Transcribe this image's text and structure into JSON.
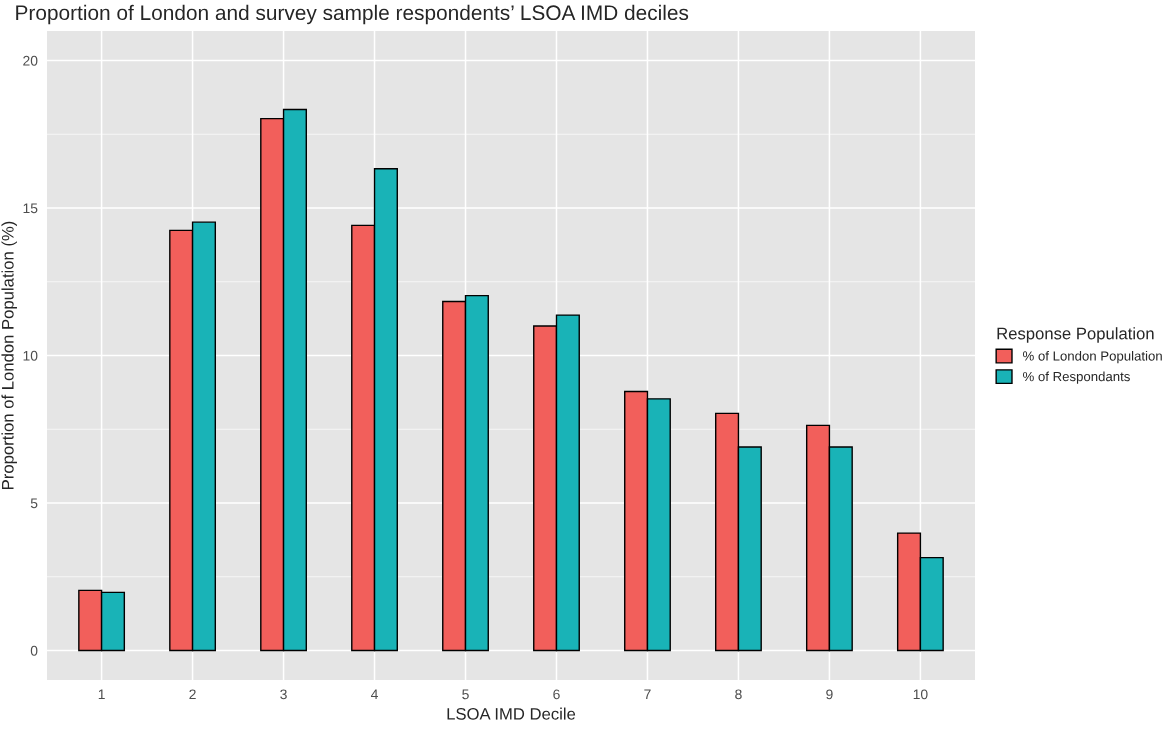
{
  "chart_data": {
    "type": "bar",
    "title": "Proportion of London and survey sample respondents’ LSOA IMD deciles",
    "xlabel": "LSOA IMD Decile",
    "ylabel": "Proportion of London Population (%)",
    "legend_title": "Response Population",
    "categories": [
      "1",
      "2",
      "3",
      "4",
      "5",
      "6",
      "7",
      "8",
      "9",
      "10"
    ],
    "series": [
      {
        "name": "% of London Population",
        "color": "#f25f5b",
        "values": [
          2.04,
          14.24,
          18.03,
          14.41,
          11.83,
          11.0,
          8.78,
          8.04,
          7.63,
          3.98
        ]
      },
      {
        "name": "% of Respondants",
        "color": "#19b3b7",
        "values": [
          1.97,
          14.52,
          18.34,
          16.33,
          12.03,
          11.37,
          8.53,
          6.9,
          6.9,
          3.15
        ]
      }
    ],
    "ylim": [
      -1,
      21
    ],
    "yticks": [
      0,
      5,
      10,
      15,
      20
    ],
    "grid": true,
    "legend": "right"
  }
}
